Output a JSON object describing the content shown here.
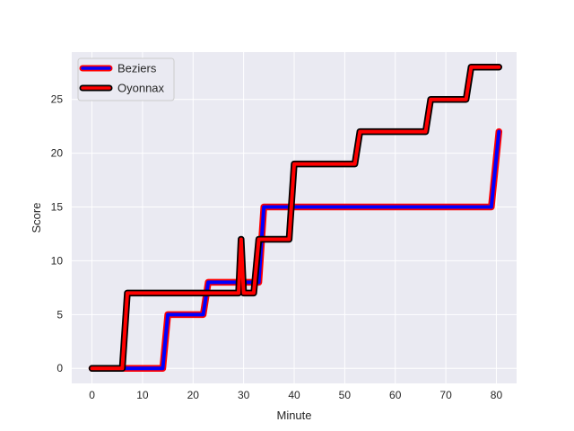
{
  "chart_data": {
    "type": "line",
    "title": "",
    "xlabel": "Minute",
    "ylabel": "Score",
    "xlim": [
      -4,
      84
    ],
    "ylim": [
      -1.4,
      29.4
    ],
    "xticks": [
      0,
      10,
      20,
      30,
      40,
      50,
      60,
      70,
      80
    ],
    "yticks": [
      0,
      5,
      10,
      15,
      20,
      25
    ],
    "grid": true,
    "background": "#eaeaf2",
    "legend_position": "top-left",
    "series": [
      {
        "name": "Beziers",
        "color": "#0000ff",
        "edge_color": "#ff0000",
        "x": [
          0,
          6,
          7,
          8,
          14,
          15,
          22,
          23,
          29,
          30,
          31,
          32,
          33,
          34,
          39,
          40,
          79,
          80.5
        ],
        "y": [
          0,
          0,
          0,
          0,
          0,
          5,
          5,
          8,
          8,
          8,
          8,
          8,
          8,
          15,
          15,
          15,
          15,
          22
        ]
      },
      {
        "name": "Oyonnax",
        "color": "#ff0000",
        "edge_color": "#000000",
        "x": [
          0,
          6,
          7,
          8,
          14,
          15,
          22,
          23,
          29,
          29.5,
          30,
          31,
          32,
          33,
          34,
          39,
          40,
          52,
          53,
          66,
          67,
          74,
          75,
          80.5
        ],
        "y": [
          0,
          0,
          7,
          7,
          7,
          7,
          7,
          7,
          7,
          12,
          7,
          7,
          7,
          12,
          12,
          12,
          19,
          19,
          22,
          22,
          25,
          25,
          28,
          28
        ]
      }
    ]
  }
}
